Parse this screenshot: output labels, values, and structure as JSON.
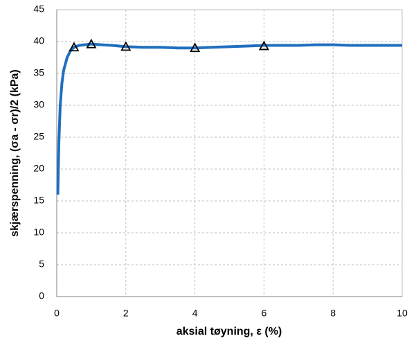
{
  "chart_data": {
    "type": "line",
    "xlabel": "aksial tøyning, ε (%)",
    "ylabel": "skjærspenning, (σa - σr)/2 (kPa)",
    "xlim": [
      0,
      10
    ],
    "xticks": [
      0,
      2,
      4,
      6,
      8,
      10
    ],
    "ylim": [
      0,
      45
    ],
    "yticks": [
      0,
      5,
      10,
      15,
      20,
      25,
      30,
      35,
      40,
      45
    ],
    "grid": true,
    "series": [
      {
        "mode": "line",
        "color": "#1f6fbf",
        "x": [
          0.03,
          0.06,
          0.1,
          0.15,
          0.2,
          0.3,
          0.4,
          0.5,
          0.65,
          0.8,
          1.0,
          1.3,
          1.6,
          2.0,
          2.5,
          3.0,
          3.5,
          4.0,
          4.5,
          5.0,
          5.5,
          6.0,
          6.5,
          7.0,
          7.5,
          8.0,
          8.5,
          9.0,
          9.5,
          10.0
        ],
        "y": [
          16,
          24,
          30,
          33.5,
          35.5,
          37.5,
          38.6,
          39.1,
          39.4,
          39.5,
          39.6,
          39.5,
          39.4,
          39.2,
          39.1,
          39.1,
          39.0,
          39.0,
          39.1,
          39.2,
          39.3,
          39.4,
          39.4,
          39.4,
          39.5,
          39.5,
          39.4,
          39.4,
          39.4,
          39.4
        ]
      },
      {
        "mode": "markers",
        "color": "#000000",
        "x": [
          0.5,
          1,
          2,
          4,
          6
        ],
        "y": [
          39.1,
          39.6,
          39.2,
          39.0,
          39.3
        ]
      }
    ]
  }
}
